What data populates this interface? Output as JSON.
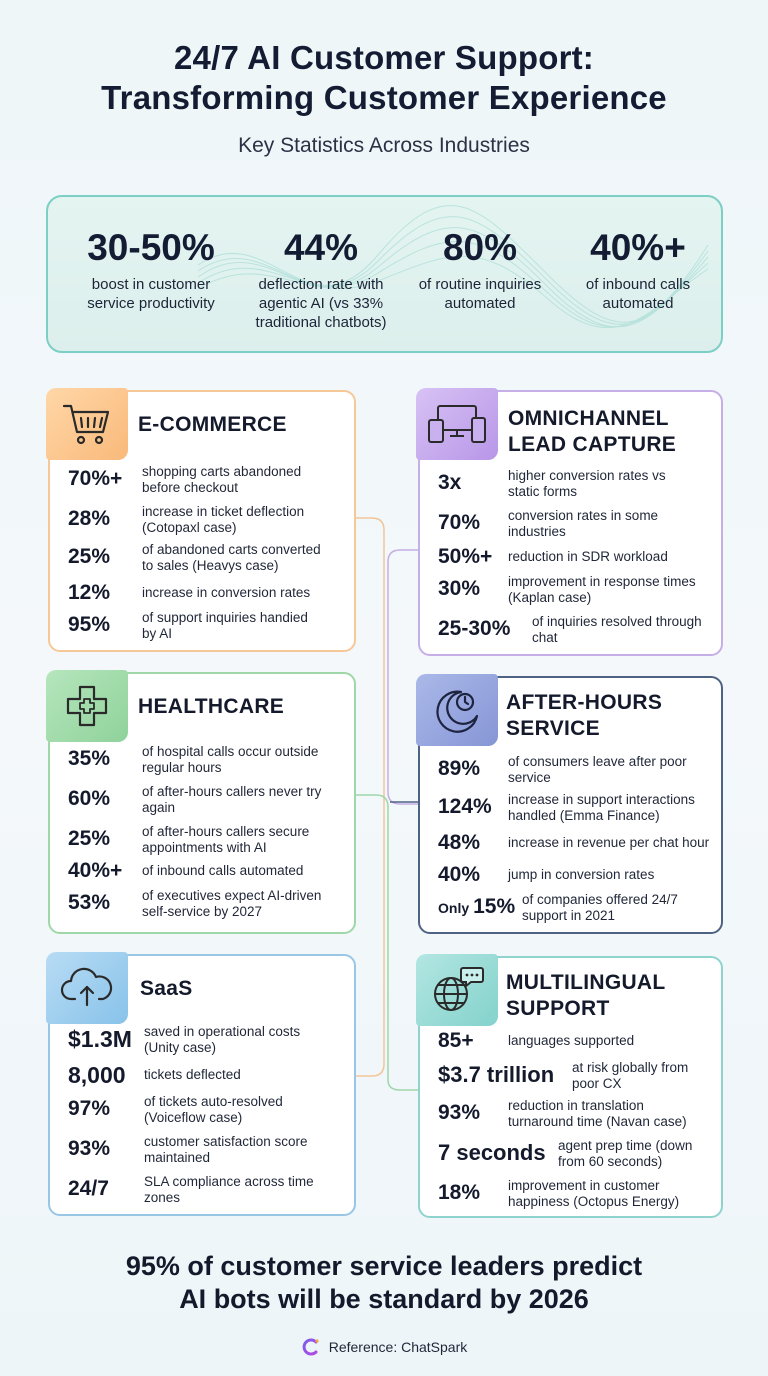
{
  "header": {
    "title_line1": "24/7 AI Customer Support:",
    "title_line2": "Transforming Customer Experience",
    "subtitle": "Key Statistics Across Industries"
  },
  "top_stats": [
    {
      "value": "30-50%",
      "label_line1": "boost in customer",
      "label_line2": "service productivity",
      "label_line3": ""
    },
    {
      "value": "44%",
      "label_line1": "deflection rate with",
      "label_line2": "agentic AI (vs 33%",
      "label_line3": "traditional chatbots)"
    },
    {
      "value": "80%",
      "label_line1": "of routine inquiries",
      "label_line2": "automated",
      "label_line3": ""
    },
    {
      "value": "40%+",
      "label_line1": "of inbound calls",
      "label_line2": "automated",
      "label_line3": ""
    }
  ],
  "cards": {
    "ecommerce": {
      "title_line1": "E-COMMERCE",
      "title_line2": "",
      "icon": "shopping-cart-icon",
      "rows": [
        {
          "value": "70%+",
          "d1": "shopping carts abandoned",
          "d2": "before checkout"
        },
        {
          "value": "28%",
          "d1": "increase in ticket deflection",
          "d2": "(Cotopaxl case)"
        },
        {
          "value": "25%",
          "d1": "of abandoned carts converted",
          "d2": "to sales (Heavys case)"
        },
        {
          "value": "12%",
          "d1": "increase in conversion rates",
          "d2": ""
        },
        {
          "value": "95%",
          "d1": "of support inquiries handied",
          "d2": "by AI"
        }
      ]
    },
    "omnichannel": {
      "title_line1": "OMNICHANNEL",
      "title_line2": "LEAD CAPTURE",
      "icon": "devices-icon",
      "rows": [
        {
          "value": "3x",
          "d1": "higher conversion rates vs",
          "d2": "static forms"
        },
        {
          "value": "70%",
          "d1": "conversion rates in some",
          "d2": "industries"
        },
        {
          "value": "50%+",
          "d1": "reduction in SDR workload",
          "d2": ""
        },
        {
          "value": "30%",
          "d1": "improvement in response times",
          "d2": "(Kaplan case)"
        },
        {
          "value": "25-30%",
          "d1": "of inquiries resolved through",
          "d2": "chat"
        }
      ]
    },
    "healthcare": {
      "title_line1": "HEALTHCARE",
      "title_line2": "",
      "icon": "medical-cross-icon",
      "rows": [
        {
          "value": "35%",
          "d1": "of hospital calls occur outside",
          "d2": "regular hours"
        },
        {
          "value": "60%",
          "d1": "of after-hours callers never try",
          "d2": "again"
        },
        {
          "value": "25%",
          "d1": "of after-hours callers secure",
          "d2": "appointments with AI"
        },
        {
          "value": "40%+",
          "d1": "of inbound calls automated",
          "d2": ""
        },
        {
          "value": "53%",
          "d1": "of executives expect AI-driven",
          "d2": "self-service by 2027"
        }
      ]
    },
    "afterhours": {
      "title_line1": "AFTER-HOURS",
      "title_line2": "SERVICE",
      "icon": "moon-clock-icon",
      "rows": [
        {
          "value": "89%",
          "d1": "of consumers leave after poor",
          "d2": "service",
          "prefix": ""
        },
        {
          "value": "124%",
          "d1": "increase in support interactions",
          "d2": "handled (Emma Finance)",
          "prefix": ""
        },
        {
          "value": "48%",
          "d1": "increase in revenue per chat hour",
          "d2": "",
          "prefix": ""
        },
        {
          "value": "40%",
          "d1": "jump in conversion rates",
          "d2": "",
          "prefix": ""
        },
        {
          "value": "15%",
          "d1": "of companies offered 24/7",
          "d2": "support in 2021",
          "prefix": "Only"
        }
      ]
    },
    "saas": {
      "title_line1": "SaaS",
      "title_line2": "",
      "icon": "cloud-upload-icon",
      "rows": [
        {
          "value": "$1.3M",
          "d1": "saved in operational costs",
          "d2": "(Unity case)"
        },
        {
          "value": "8,000",
          "d1": "tickets deflected",
          "d2": ""
        },
        {
          "value": "97%",
          "d1": "of tickets auto-resolved",
          "d2": "(Voiceflow case)"
        },
        {
          "value": "93%",
          "d1": "customer satisfaction score",
          "d2": "maintained"
        },
        {
          "value": "24/7",
          "d1": "SLA compliance across time",
          "d2": "zones"
        }
      ]
    },
    "multilingual": {
      "title_line1": "MULTILINGUAL",
      "title_line2": "SUPPORT",
      "icon": "globe-chat-icon",
      "rows": [
        {
          "value": "85+",
          "d1": "languages supported",
          "d2": ""
        },
        {
          "value": "$3.7 trillion",
          "d1": "at risk globally from",
          "d2": "poor CX"
        },
        {
          "value": "93%",
          "d1": "reduction in translation",
          "d2": "turnaround time (Navan case)"
        },
        {
          "value": "7 seconds",
          "d1": "agent prep time (down",
          "d2": "from 60 seconds)"
        },
        {
          "value": "18%",
          "d1": "improvement in customer",
          "d2": "happiness (Octopus Energy)"
        }
      ]
    }
  },
  "footer": {
    "line1": "95% of customer service leaders predict",
    "line2": "AI bots will be standard by 2026",
    "reference": "Reference: ChatSpark"
  },
  "colors": {
    "ecommerce": "#f6c898",
    "omnichannel": "#c6aee6",
    "healthcare": "#9fd7a8",
    "afterhours": "#4e6383",
    "saas": "#9ac6e6",
    "multilingual": "#8fd3cf"
  }
}
